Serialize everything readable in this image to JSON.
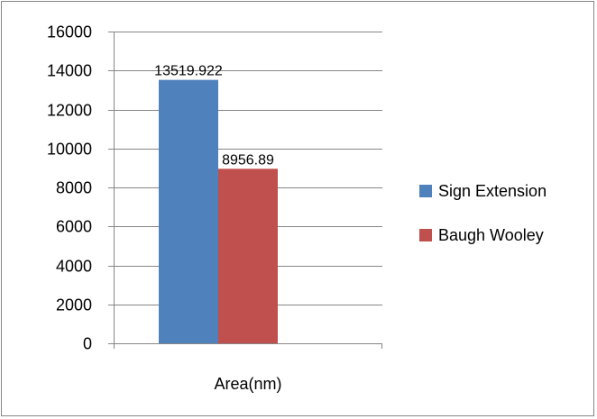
{
  "chart_data": {
    "type": "bar",
    "title": "",
    "xlabel": "",
    "ylabel": "",
    "categories": [
      "Area(nm)"
    ],
    "series": [
      {
        "name": "Sign Extension",
        "values": [
          13519.922
        ],
        "label": "13519.922",
        "color": "#4F81BD"
      },
      {
        "name": "Baugh Wooley",
        "values": [
          8956.89
        ],
        "label": "8956.89",
        "color": "#C0504D"
      }
    ],
    "ylim": [
      0,
      16000
    ],
    "yticks": [
      0,
      2000,
      4000,
      6000,
      8000,
      10000,
      12000,
      14000,
      16000
    ],
    "ytick_labels": [
      "0",
      "2000",
      "4000",
      "6000",
      "8000",
      "10000",
      "12000",
      "14000",
      "16000"
    ],
    "grid": true,
    "legend_position": "right"
  }
}
